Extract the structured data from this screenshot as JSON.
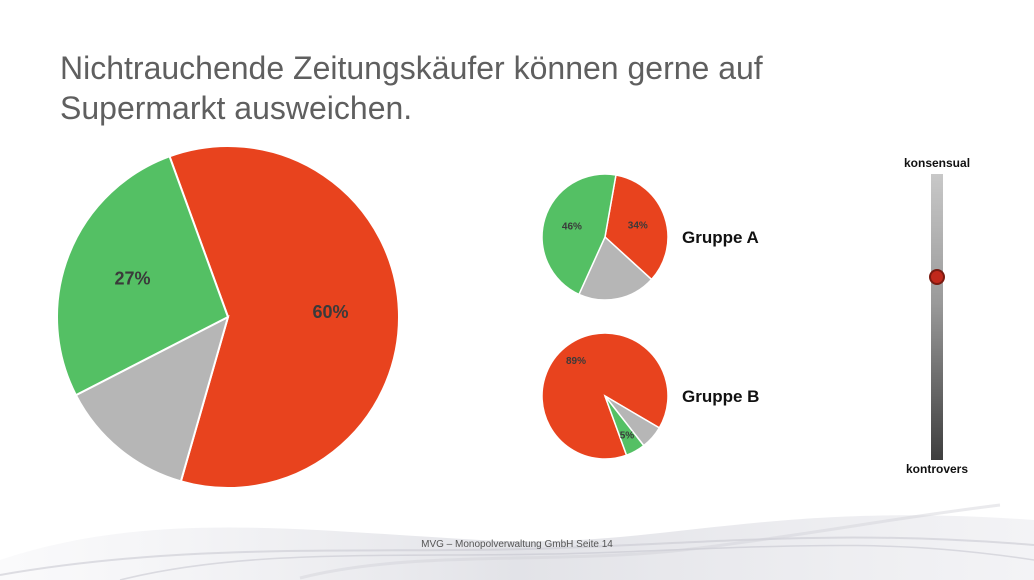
{
  "slide": {
    "title_line1": "Nichtrauchende Zeitungskäufer können gerne auf",
    "title_line2": "Supermarkt ausweichen.",
    "footer": "MVG – Monopolverwaltung GmbH  Seite 14"
  },
  "colors": {
    "red": "#e8431e",
    "green": "#54c064",
    "gray": "#b6b6b6"
  },
  "chart_data": [
    {
      "type": "pie",
      "name": "main",
      "slices": [
        {
          "value": 60,
          "label": "60%",
          "color": "#e8431e"
        },
        {
          "value": 13,
          "label": "",
          "color": "#b6b6b6"
        },
        {
          "value": 27,
          "label": "27%",
          "color": "#54c064"
        }
      ]
    },
    {
      "type": "pie",
      "name": "Gruppe A",
      "group_label": "Gruppe A",
      "slices": [
        {
          "value": 34,
          "label": "34%",
          "color": "#e8431e"
        },
        {
          "value": 20,
          "label": "",
          "color": "#b6b6b6"
        },
        {
          "value": 46,
          "label": "46%",
          "color": "#54c064"
        }
      ]
    },
    {
      "type": "pie",
      "name": "Gruppe B",
      "group_label": "Gruppe B",
      "slices": [
        {
          "value": 89,
          "label": "89%",
          "color": "#e8431e"
        },
        {
          "value": 6,
          "label": "",
          "color": "#b6b6b6"
        },
        {
          "value": 5,
          "label": "5%",
          "color": "#54c064"
        }
      ]
    }
  ],
  "scale": {
    "top_label": "konsensual",
    "bottom_label": "kontrovers",
    "level_from_top": 0.36
  }
}
